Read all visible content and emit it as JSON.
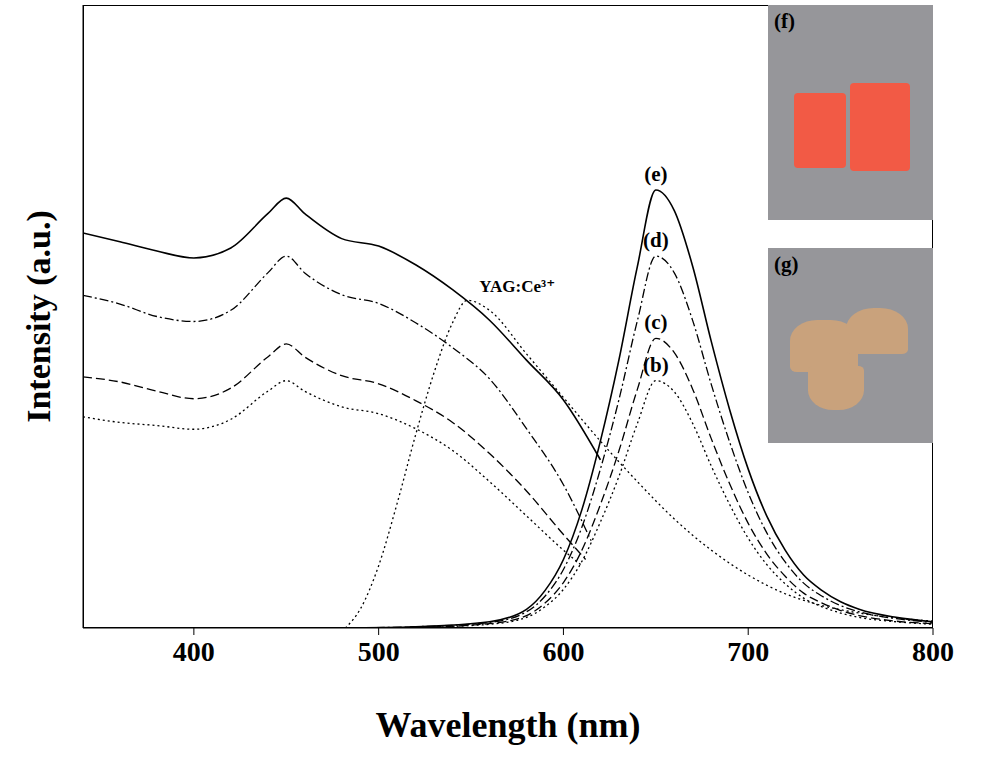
{
  "chart_data": {
    "type": "line",
    "xlabel": "Wavelength (nm)",
    "ylabel": "Intensity (a.u.)",
    "xlim": [
      340,
      800
    ],
    "xticks": [
      400,
      500,
      600,
      700,
      800
    ],
    "ylim": [
      0,
      100
    ],
    "yticks": [],
    "tick_labels": "x",
    "color": "#000000",
    "series": [
      {
        "x": [
          340,
          360,
          380,
          400,
          420,
          440,
          450,
          460,
          480,
          500,
          520,
          540,
          560,
          580,
          600,
          620
        ],
        "values": [
          63.4,
          62,
          60.5,
          59.4,
          61,
          66.5,
          69,
          66.5,
          62.5,
          61.3,
          58.3,
          54.3,
          49.4,
          43,
          36.6,
          27
        ],
        "line_style": "solid"
      },
      {
        "x": [
          340,
          360,
          380,
          400,
          420,
          440,
          450,
          460,
          480,
          500,
          520,
          540,
          560,
          580,
          600,
          615
        ],
        "values": [
          53.4,
          52,
          50,
          49.2,
          51,
          57,
          59.7,
          57,
          53.5,
          52.1,
          49,
          45,
          40,
          32,
          23,
          14
        ],
        "line_style": "dashdot"
      },
      {
        "x": [
          340,
          360,
          380,
          400,
          420,
          440,
          450,
          460,
          480,
          500,
          520,
          540,
          560,
          580,
          600,
          612
        ],
        "values": [
          40.3,
          39.5,
          38,
          36.8,
          38.5,
          43.5,
          45.6,
          43.5,
          40.5,
          39.2,
          36.5,
          33,
          28,
          22,
          15,
          11
        ],
        "line_style": "dashed"
      },
      {
        "x": [
          340,
          360,
          380,
          400,
          420,
          440,
          450,
          460,
          480,
          500,
          520,
          540,
          560,
          580,
          600,
          610
        ],
        "values": [
          33.9,
          33,
          32.5,
          31.9,
          33.5,
          38,
          39.7,
          38,
          35.5,
          34.4,
          32,
          28.5,
          23.5,
          18,
          12.5,
          10
        ],
        "line_style": "dotted"
      },
      {
        "label": "YAG:Ce³⁺",
        "x": [
          482,
          490,
          500,
          510,
          520,
          530,
          540,
          548,
          560,
          580,
          600,
          620,
          640,
          660,
          680,
          700,
          720,
          740,
          760,
          780,
          800
        ],
        "values": [
          0,
          3,
          10,
          20,
          31,
          41,
          49,
          52.6,
          51,
          44,
          37,
          30,
          23.5,
          17.5,
          12.5,
          8.5,
          5.5,
          3.6,
          2.4,
          1.6,
          1.1
        ],
        "line_style": "dotted"
      },
      {
        "label": "(e)",
        "x": [
          480,
          520,
          560,
          580,
          590,
          600,
          610,
          620,
          630,
          640,
          650,
          660,
          670,
          680,
          690,
          700,
          710,
          720,
          730,
          740,
          750,
          760,
          780,
          800
        ],
        "values": [
          0,
          0.2,
          1,
          3,
          6,
          11,
          19,
          30,
          43,
          58,
          70.3,
          67,
          58,
          46,
          35,
          25.5,
          18,
          12.5,
          8.5,
          6,
          4.2,
          3,
          1.7,
          1
        ],
        "line_style": "solid"
      },
      {
        "label": "(d)",
        "x": [
          480,
          520,
          560,
          580,
          590,
          600,
          610,
          620,
          630,
          640,
          650,
          660,
          670,
          680,
          690,
          700,
          710,
          720,
          730,
          740,
          750,
          760,
          780,
          800
        ],
        "values": [
          0,
          0.2,
          0.9,
          2.6,
          5.1,
          9.4,
          16.2,
          25.5,
          36.6,
          49.3,
          59.7,
          57,
          49.3,
          39.1,
          29.8,
          21.7,
          15.3,
          10.6,
          7.2,
          5.1,
          3.6,
          2.6,
          1.5,
          0.9
        ],
        "line_style": "dashdot"
      },
      {
        "label": "(c)",
        "x": [
          480,
          520,
          560,
          580,
          590,
          600,
          610,
          620,
          630,
          640,
          650,
          660,
          670,
          680,
          690,
          700,
          710,
          720,
          730,
          740,
          750,
          760,
          780,
          800
        ],
        "values": [
          0,
          0.1,
          0.7,
          2,
          4,
          7.3,
          12.5,
          19.8,
          28.4,
          38.3,
          46.5,
          44.2,
          38.3,
          30.4,
          23.1,
          16.8,
          11.9,
          8.3,
          5.6,
          4,
          2.8,
          2,
          1.1,
          0.7
        ],
        "line_style": "dashed"
      },
      {
        "label": "(b)",
        "x": [
          480,
          520,
          560,
          580,
          590,
          600,
          610,
          620,
          630,
          640,
          650,
          660,
          670,
          680,
          690,
          700,
          710,
          720,
          730,
          740,
          750,
          760,
          780,
          800
        ],
        "values": [
          0,
          0.1,
          0.6,
          1.7,
          3.4,
          6.2,
          10.7,
          17,
          24.3,
          32.8,
          39.7,
          37.9,
          32.8,
          26,
          19.8,
          14.4,
          10.2,
          7.1,
          4.8,
          3.4,
          2.4,
          1.7,
          1,
          0.6
        ],
        "line_style": "dotted"
      }
    ],
    "insets": [
      {
        "label": "(f)",
        "color": "#f25a45"
      },
      {
        "label": "(g)",
        "color": "#c9a27c"
      }
    ]
  }
}
